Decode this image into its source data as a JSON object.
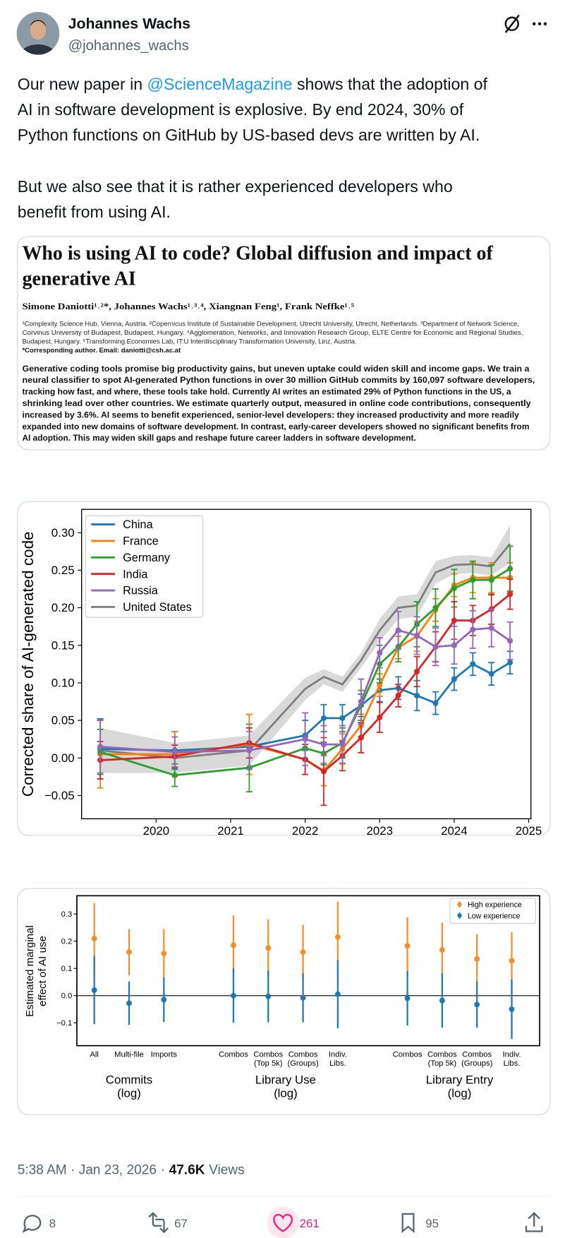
{
  "author": {
    "name": "Johannes Wachs",
    "handle": "@johannes_wachs"
  },
  "tweet": {
    "paragraphs": [
      [
        [
          {
            "text": "Our new paper in "
          },
          {
            "text": "@ScienceMagazine",
            "link": true
          },
          {
            "text": " shows that the adoption of"
          }
        ],
        [
          {
            "text": "AI in software development is explosive. By end 2024, 30% of"
          }
        ],
        [
          {
            "text": "Python functions on GitHub by US-based devs are written by AI."
          }
        ]
      ],
      [
        [
          {
            "text": "But we also see that it is rather experienced developers who"
          }
        ],
        [
          {
            "text": "benefit from using AI."
          }
        ]
      ]
    ]
  },
  "paper": {
    "title_lines": [
      "Who is using AI to code? Global diffusion and impact of",
      "generative AI"
    ],
    "authors": "Simone Daniotti¹˒²*, Johannes Wachs¹˒³˒⁴, Xiangnan Feng¹, Frank Neffke¹˒⁵",
    "affiliations": [
      "¹Complexity Science Hub, Vienna, Austria. ²Copernicus Institute of Sustainable Development, Utrecht University, Utrecht, Netherlands. ³Department of Network Science,",
      "Corvinus University of Budapest, Budapest, Hungary. ⁴Agglomeration, Networks, and Innovation Research Group, ELTE Centre for Economic and Regional Studies,",
      "Budapest, Hungary. ⁵Transforming Economies Lab, IT:U Interdisciplinary Transformation University, Linz, Austria."
    ],
    "corresponding": "*Corresponding author. Email: daniotti@csh.ac.at",
    "abstract": [
      "Generative coding tools promise big productivity gains, but uneven uptake could widen skill and income gaps. We train a",
      "neural classifier to spot AI-generated Python functions in over 30 million GitHub commits by 160,097 software developers,",
      "tracking how fast, and where, these tools take hold. Currently AI writes an estimated 29% of Python functions in the US, a",
      "shrinking lead over other countries. We estimate quarterly output, measured in online code contributions, consequently",
      "increased by 3.6%. AI seems to benefit experienced, senior-level developers: they increased productivity and more readily",
      "expanded into new domains of software development. In contrast, early-career developers showed no significant benefits from",
      "AI adoption. This may widen skill gaps and reshape future career ladders in software development."
    ]
  },
  "chart_data": [
    {
      "type": "line",
      "ylabel": "Corrected share of AI-generated code",
      "x": [
        2019.25,
        2020.25,
        2021.25,
        2022,
        2022.25,
        2022.5,
        2022.75,
        2023,
        2023.25,
        2023.5,
        2023.75,
        2024,
        2024.25,
        2024.5,
        2024.75
      ],
      "series": [
        {
          "name": "China",
          "color": "#1f77b4",
          "values": [
            0.012,
            0.01,
            0.015,
            0.03,
            0.053,
            0.053,
            0.07,
            0.09,
            0.093,
            0.083,
            0.073,
            0.105,
            0.125,
            0.112,
            0.127
          ],
          "errors": [
            0.04,
            0.025,
            0.03,
            0.02,
            0.018,
            0.018,
            0.015,
            0.015,
            0.015,
            0.02,
            0.015,
            0.015,
            0.015,
            0.015,
            0.015
          ]
        },
        {
          "name": "France",
          "color": "#ff7f0e",
          "values": [
            0.005,
            0.005,
            0.018,
            -0.002,
            -0.017,
            0.012,
            0.043,
            0.097,
            0.147,
            0.162,
            0.197,
            0.23,
            0.24,
            0.24,
            0.24
          ],
          "errors": [
            0.045,
            0.03,
            0.04,
            0.02,
            0.02,
            0.02,
            0.015,
            0.015,
            0.015,
            0.02,
            0.015,
            0.015,
            0.02,
            0.02,
            0.02
          ]
        },
        {
          "name": "Germany",
          "color": "#2ca02c",
          "values": [
            0.008,
            -0.023,
            -0.013,
            0.013,
            0.006,
            0.02,
            0.07,
            0.125,
            0.148,
            0.178,
            0.2,
            0.226,
            0.237,
            0.237,
            0.252
          ],
          "errors": [
            0.03,
            0.015,
            0.032,
            0.015,
            0.015,
            0.02,
            0.02,
            0.025,
            0.02,
            0.03,
            0.025,
            0.025,
            0.025,
            0.02,
            0.03
          ]
        },
        {
          "name": "India",
          "color": "#d62728",
          "values": [
            -0.003,
            0.002,
            0.02,
            -0.002,
            -0.018,
            0.003,
            0.027,
            0.054,
            0.083,
            0.115,
            0.148,
            0.183,
            0.183,
            0.198,
            0.218
          ],
          "errors": [
            0.025,
            0.015,
            0.02,
            0.02,
            0.045,
            0.02,
            0.02,
            0.02,
            0.015,
            0.02,
            0.02,
            0.025,
            0.02,
            0.02,
            0.02
          ]
        },
        {
          "name": "Russia",
          "color": "#9467bd",
          "values": [
            0.015,
            0.008,
            0.01,
            0.025,
            0.018,
            0.018,
            0.075,
            0.14,
            0.17,
            0.163,
            0.148,
            0.15,
            0.171,
            0.173,
            0.156
          ],
          "errors": [
            0.035,
            0.02,
            0.025,
            0.035,
            0.025,
            0.025,
            0.03,
            0.02,
            0.025,
            0.025,
            0.025,
            0.025,
            0.025,
            0.025,
            0.025
          ]
        },
        {
          "name": "United States",
          "color": "#7f7f7f",
          "style": "band",
          "values": [
            0.01,
            0.0,
            0.01,
            0.092,
            0.108,
            0.098,
            0.13,
            0.17,
            0.2,
            0.203,
            0.247,
            0.257,
            0.258,
            0.255,
            0.285
          ],
          "errors": [
            0.03,
            0.02,
            0.02,
            0.015,
            0.01,
            0.01,
            0.01,
            0.015,
            0.015,
            0.015,
            0.015,
            0.012,
            0.012,
            0.012,
            0.025
          ]
        }
      ],
      "xlim": [
        2019.0,
        2025.03
      ],
      "xticks": [
        2020,
        2021,
        2022,
        2023,
        2024,
        2025
      ],
      "ylim": [
        -0.081,
        0.331
      ],
      "yticks": [
        {
          "value": -0.05,
          "label": "−0.05"
        },
        {
          "value": 0,
          "label": "0.00"
        },
        0.05,
        {
          "value": 0.1,
          "label": "0.10"
        },
        0.15,
        {
          "value": 0.2,
          "label": "0.20"
        },
        0.25,
        {
          "value": 0.3,
          "label": "0.30"
        }
      ],
      "legend": "upper left"
    },
    {
      "type": "errorbar",
      "ylabel": [
        "Estimated marginal",
        "effect of AI use"
      ],
      "groups": [
        {
          "name": "Commits",
          "unit": "(log)",
          "categories": [
            [
              "All"
            ],
            [
              "Multi-file"
            ],
            [
              "Imports"
            ]
          ]
        },
        {
          "name": "Library Use",
          "unit": "(log)",
          "categories": [
            [
              "Combos"
            ],
            [
              "Combos",
              "(Top 5k)"
            ],
            [
              "Combos",
              "(Groups)"
            ],
            [
              "Indiv.",
              "Libs."
            ]
          ]
        },
        {
          "name": "Library Entry",
          "unit": "(log)",
          "categories": [
            [
              "Combos"
            ],
            [
              "Combos",
              "(Top 5k)"
            ],
            [
              "Combos",
              "(Groups)"
            ],
            [
              "Indiv.",
              "Libs."
            ]
          ]
        }
      ],
      "series": [
        {
          "name": "High experience",
          "color": "#f28e2b",
          "values": [
            0.21,
            0.16,
            0.155,
            0.185,
            0.175,
            0.16,
            0.215,
            0.183,
            0.168,
            0.135,
            0.128
          ],
          "errors": [
            0.13,
            0.085,
            0.09,
            0.11,
            0.105,
            0.1,
            0.13,
            0.105,
            0.1,
            0.09,
            0.105
          ]
        },
        {
          "name": "Low experience",
          "color": "#1f77b4",
          "values": [
            0.02,
            -0.028,
            -0.015,
            0.0,
            -0.003,
            -0.008,
            0.005,
            -0.01,
            -0.018,
            -0.033,
            -0.05
          ],
          "errors": [
            0.125,
            0.08,
            0.082,
            0.1,
            0.095,
            0.09,
            0.125,
            0.1,
            0.1,
            0.085,
            0.11
          ]
        }
      ],
      "ylim": [
        -0.184,
        0.367
      ],
      "yticks": [
        {
          "value": -0.1,
          "label": "−0.1"
        },
        {
          "value": 0,
          "label": "0.0"
        },
        0.1,
        0.2,
        0.3
      ],
      "legend": "upper right",
      "zero_line": true
    }
  ],
  "footer": {
    "time": "5:38 AM · Jan 23, 2026",
    "separator": "·",
    "views": "47.6K",
    "views_label": "Views"
  },
  "actions": {
    "replies": 8,
    "reposts": 67,
    "likes": 261,
    "bookmarks": 95
  }
}
